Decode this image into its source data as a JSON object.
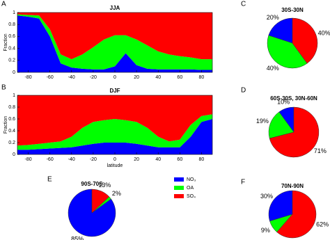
{
  "chart_data": [
    {
      "type": "area",
      "panel": "A",
      "title": "JJA",
      "ylabel": "Fraction",
      "x": [
        -90,
        -80,
        -70,
        -60,
        -50,
        -40,
        -30,
        -20,
        -10,
        0,
        10,
        20,
        30,
        40,
        50,
        60,
        70,
        80,
        90
      ],
      "xlim": [
        -90,
        90
      ],
      "xticks": [
        -80,
        -60,
        -40,
        -20,
        0,
        20,
        40,
        60,
        80
      ],
      "ylim": [
        0,
        1
      ],
      "yticks": [
        0,
        0.2,
        0.4,
        0.6,
        0.8,
        1
      ],
      "series": [
        {
          "color": "#0000ff",
          "values": [
            0.95,
            0.93,
            0.9,
            0.6,
            0.15,
            0.08,
            0.06,
            0.05,
            0.05,
            0.1,
            0.32,
            0.12,
            0.06,
            0.05,
            0.05,
            0.05,
            0.05,
            0.04,
            0.04
          ]
        },
        {
          "color": "#00ff00",
          "values": [
            0.02,
            0.03,
            0.05,
            0.12,
            0.15,
            0.14,
            0.24,
            0.37,
            0.5,
            0.52,
            0.3,
            0.43,
            0.39,
            0.3,
            0.25,
            0.22,
            0.2,
            0.18,
            0.18
          ]
        },
        {
          "color": "#ff0000",
          "values": [
            0.03,
            0.04,
            0.05,
            0.28,
            0.7,
            0.78,
            0.7,
            0.58,
            0.45,
            0.38,
            0.38,
            0.45,
            0.55,
            0.65,
            0.7,
            0.73,
            0.75,
            0.78,
            0.78
          ]
        }
      ]
    },
    {
      "type": "area",
      "panel": "B",
      "title": "DJF",
      "ylabel": "Fraction",
      "xlabel": "latitude",
      "x": [
        -90,
        -80,
        -70,
        -60,
        -50,
        -40,
        -30,
        -20,
        -10,
        0,
        10,
        20,
        30,
        40,
        50,
        60,
        70,
        80,
        90
      ],
      "xlim": [
        -90,
        90
      ],
      "xticks": [
        -80,
        -60,
        -40,
        -20,
        0,
        20,
        40,
        60,
        80
      ],
      "ylim": [
        0,
        1
      ],
      "yticks": [
        0,
        0.2,
        0.4,
        0.6,
        0.8,
        1
      ],
      "series": [
        {
          "color": "#0000ff",
          "values": [
            0.08,
            0.08,
            0.09,
            0.1,
            0.11,
            0.12,
            0.15,
            0.18,
            0.2,
            0.2,
            0.2,
            0.18,
            0.15,
            0.12,
            0.12,
            0.12,
            0.3,
            0.55,
            0.6
          ]
        },
        {
          "color": "#00ff00",
          "values": [
            0.07,
            0.08,
            0.09,
            0.1,
            0.11,
            0.18,
            0.3,
            0.37,
            0.38,
            0.4,
            0.38,
            0.37,
            0.3,
            0.18,
            0.1,
            0.13,
            0.2,
            0.1,
            0.08
          ]
        },
        {
          "color": "#ff0000",
          "values": [
            0.85,
            0.84,
            0.82,
            0.8,
            0.78,
            0.7,
            0.55,
            0.45,
            0.42,
            0.4,
            0.42,
            0.45,
            0.55,
            0.7,
            0.78,
            0.75,
            0.5,
            0.35,
            0.32
          ]
        }
      ]
    },
    {
      "type": "pie",
      "panel": "C",
      "title": "30S-30N",
      "values": [
        20,
        40,
        40
      ],
      "value_labels": [
        "20%",
        "40%",
        "40%"
      ],
      "colors": [
        "#0000ff",
        "#00ff00",
        "#ff0000"
      ]
    },
    {
      "type": "pie",
      "panel": "D",
      "title": "60S-30S, 30N-60N",
      "values": [
        10,
        19,
        71
      ],
      "value_labels": [
        "10%",
        "19%",
        "71%"
      ],
      "colors": [
        "#0000ff",
        "#00ff00",
        "#ff0000"
      ]
    },
    {
      "type": "pie",
      "panel": "E",
      "title": "90S-70S",
      "values": [
        85,
        2,
        13
      ],
      "value_labels": [
        "85%",
        "2%",
        "13%"
      ],
      "colors": [
        "#0000ff",
        "#00ff00",
        "#ff0000"
      ]
    },
    {
      "type": "pie",
      "panel": "F",
      "title": "70N-90N",
      "values": [
        30,
        9,
        62
      ],
      "value_labels": [
        "30%",
        "9%",
        "62%"
      ],
      "colors": [
        "#0000ff",
        "#00ff00",
        "#ff0000"
      ]
    }
  ],
  "legend": [
    {
      "name": "NO₃",
      "color": "#0000ff"
    },
    {
      "name": "OA",
      "color": "#00ff00"
    },
    {
      "name": "SO₄",
      "color": "#ff0000"
    }
  ]
}
